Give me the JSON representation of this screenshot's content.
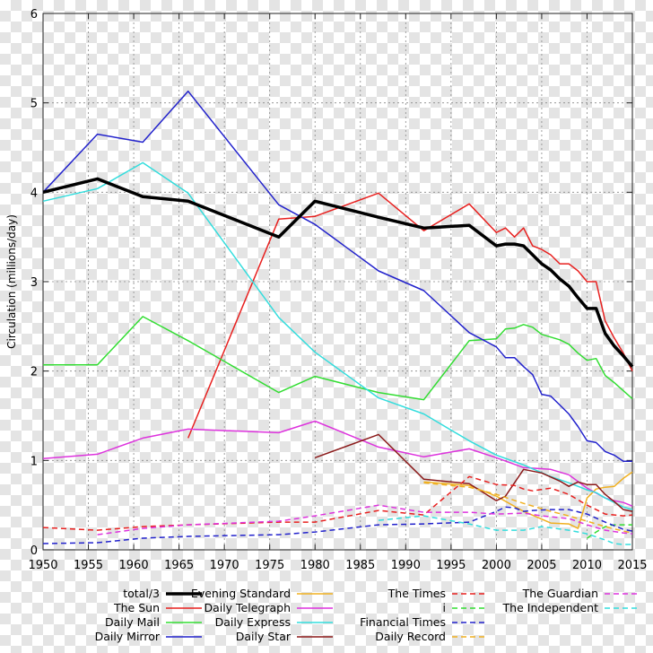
{
  "chart_data": {
    "type": "line",
    "title": "",
    "xlabel": "",
    "ylabel": "Circulation (millions/day)",
    "xlim": [
      1950,
      2015
    ],
    "ylim": [
      0,
      6
    ],
    "x_ticks": [
      "1950",
      "1955",
      "1960",
      "1965",
      "1970",
      "1975",
      "1980",
      "1985",
      "1990",
      "1995",
      "2000",
      "2005",
      "2010",
      "2015"
    ],
    "y_ticks": [
      "0",
      "1",
      "2",
      "3",
      "4",
      "5",
      "6"
    ],
    "grid": true,
    "legend_position": "bottom",
    "series": [
      {
        "name": "total/3",
        "color": "#000000",
        "dash": "solid",
        "width": 3.5,
        "x": [
          1950,
          1956,
          1961,
          1966,
          1976,
          1980,
          1987,
          1992,
          1997,
          2000,
          2001,
          2002,
          2003,
          2004,
          2005,
          2006,
          2007,
          2008,
          2009,
          2010,
          2011,
          2012,
          2013,
          2014,
          2015
        ],
        "y": [
          4.0,
          4.15,
          3.95,
          3.9,
          3.5,
          3.9,
          3.72,
          3.6,
          3.63,
          3.4,
          3.42,
          3.42,
          3.4,
          3.3,
          3.2,
          3.13,
          3.03,
          2.95,
          2.82,
          2.7,
          2.7,
          2.42,
          2.28,
          2.17,
          2.05
        ]
      },
      {
        "name": "The Sun",
        "color": "#e8201f",
        "dash": "solid",
        "width": 1.5,
        "x": [
          1966,
          1976,
          1980,
          1987,
          1992,
          1997,
          2000,
          2001,
          2002,
          2003,
          2004,
          2005,
          2006,
          2007,
          2008,
          2009,
          2010,
          2011,
          2012,
          2013,
          2014,
          2015
        ],
        "y": [
          1.25,
          3.7,
          3.73,
          3.99,
          3.57,
          3.87,
          3.55,
          3.6,
          3.5,
          3.6,
          3.4,
          3.36,
          3.3,
          3.2,
          3.2,
          3.12,
          3.0,
          3.0,
          2.56,
          2.37,
          2.2,
          2.0
        ]
      },
      {
        "name": "Daily Mail",
        "color": "#33dd33",
        "dash": "solid",
        "width": 1.5,
        "x": [
          1950,
          1956,
          1961,
          1966,
          1976,
          1980,
          1987,
          1992,
          1997,
          2000,
          2001,
          2002,
          2003,
          2004,
          2005,
          2006,
          2007,
          2008,
          2009,
          2010,
          2011,
          2012,
          2013,
          2014,
          2015
        ],
        "y": [
          2.07,
          2.07,
          2.61,
          2.34,
          1.76,
          1.94,
          1.76,
          1.68,
          2.34,
          2.36,
          2.47,
          2.48,
          2.52,
          2.49,
          2.41,
          2.38,
          2.35,
          2.3,
          2.2,
          2.12,
          2.14,
          1.95,
          1.87,
          1.78,
          1.69
        ]
      },
      {
        "name": "Daily Mirror",
        "color": "#2222cc",
        "dash": "solid",
        "width": 1.5,
        "x": [
          1950,
          1956,
          1961,
          1966,
          1976,
          1980,
          1987,
          1992,
          1997,
          2000,
          2001,
          2002,
          2003,
          2004,
          2005,
          2006,
          2007,
          2008,
          2009,
          2010,
          2011,
          2012,
          2013,
          2014,
          2015
        ],
        "y": [
          4.0,
          4.65,
          4.56,
          5.13,
          3.86,
          3.64,
          3.12,
          2.9,
          2.43,
          2.27,
          2.15,
          2.15,
          2.05,
          1.96,
          1.74,
          1.72,
          1.62,
          1.52,
          1.38,
          1.22,
          1.2,
          1.1,
          1.06,
          0.99,
          0.99
        ]
      },
      {
        "name": "Evening Standard",
        "color": "#f0b020",
        "dash": "solid",
        "width": 1.5,
        "x": [
          1992,
          1997,
          2000,
          2003,
          2006,
          2008,
          2009,
          2010,
          2011,
          2012,
          2013,
          2014,
          2015
        ],
        "y": [
          0.76,
          0.72,
          0.6,
          0.43,
          0.3,
          0.29,
          0.24,
          0.58,
          0.68,
          0.7,
          0.71,
          0.8,
          0.87
        ]
      },
      {
        "name": "Daily Telegraph",
        "color": "#dd33dd",
        "dash": "solid",
        "width": 1.5,
        "x": [
          1950,
          1956,
          1961,
          1966,
          1976,
          1980,
          1987,
          1992,
          1997,
          2000,
          2003,
          2006,
          2008,
          2010,
          2012,
          2013,
          2014,
          2015
        ],
        "y": [
          1.02,
          1.07,
          1.25,
          1.35,
          1.31,
          1.44,
          1.15,
          1.04,
          1.13,
          1.03,
          0.92,
          0.9,
          0.84,
          0.69,
          0.58,
          0.55,
          0.53,
          0.49
        ]
      },
      {
        "name": "Daily Express",
        "color": "#33dddd",
        "dash": "solid",
        "width": 1.5,
        "x": [
          1950,
          1956,
          1961,
          1966,
          1976,
          1980,
          1987,
          1992,
          1997,
          2000,
          2003,
          2006,
          2008,
          2009,
          2010,
          2011,
          2012,
          2013,
          2014,
          2015
        ],
        "y": [
          3.9,
          4.04,
          4.33,
          3.99,
          2.6,
          2.21,
          1.7,
          1.52,
          1.22,
          1.06,
          0.95,
          0.82,
          0.75,
          0.71,
          0.67,
          0.64,
          0.58,
          0.53,
          0.48,
          0.45
        ]
      },
      {
        "name": "Daily Star",
        "color": "#8b1a1a",
        "dash": "solid",
        "width": 1.5,
        "x": [
          1980,
          1987,
          1992,
          1997,
          2000,
          2001,
          2003,
          2005,
          2007,
          2008,
          2009,
          2010,
          2011,
          2012,
          2013,
          2014,
          2015
        ],
        "y": [
          1.03,
          1.29,
          0.79,
          0.74,
          0.55,
          0.6,
          0.9,
          0.86,
          0.77,
          0.71,
          0.76,
          0.73,
          0.73,
          0.62,
          0.54,
          0.45,
          0.43
        ]
      },
      {
        "name": "The Times",
        "color": "#e8201f",
        "dash": "dashed",
        "width": 1.5,
        "x": [
          1950,
          1956,
          1961,
          1966,
          1976,
          1980,
          1987,
          1992,
          1997,
          2000,
          2002,
          2003,
          2004,
          2006,
          2008,
          2010,
          2012,
          2014,
          2015
        ],
        "y": [
          0.25,
          0.22,
          0.26,
          0.28,
          0.31,
          0.31,
          0.44,
          0.39,
          0.82,
          0.73,
          0.72,
          0.68,
          0.66,
          0.69,
          0.62,
          0.5,
          0.4,
          0.38,
          0.39
        ]
      },
      {
        "name": "i",
        "color": "#33dd33",
        "dash": "dashed",
        "width": 1.5,
        "x": [
          2010,
          2011,
          2012,
          2013,
          2014,
          2015
        ],
        "y": [
          0.13,
          0.2,
          0.26,
          0.28,
          0.28,
          0.28
        ]
      },
      {
        "name": "Financial Times",
        "color": "#2222cc",
        "dash": "dashed",
        "width": 1.5,
        "x": [
          1950,
          1956,
          1961,
          1966,
          1976,
          1980,
          1987,
          1992,
          1997,
          2000,
          2001,
          2002,
          2003,
          2004,
          2006,
          2008,
          2010,
          2012,
          2014,
          2015
        ],
        "y": [
          0.07,
          0.08,
          0.13,
          0.15,
          0.17,
          0.2,
          0.28,
          0.29,
          0.31,
          0.43,
          0.48,
          0.47,
          0.43,
          0.44,
          0.45,
          0.45,
          0.4,
          0.31,
          0.23,
          0.21
        ]
      },
      {
        "name": "Daily Record",
        "color": "#f0b020",
        "dash": "dashed",
        "width": 1.5,
        "x": [
          1992,
          1997,
          2000,
          2003,
          2006,
          2008,
          2010,
          2012,
          2014,
          2015
        ],
        "y": [
          0.75,
          0.7,
          0.62,
          0.52,
          0.43,
          0.38,
          0.32,
          0.26,
          0.21,
          0.19
        ]
      },
      {
        "name": "The Guardian",
        "color": "#dd33dd",
        "dash": "dashed",
        "width": 1.5,
        "x": [
          1956,
          1961,
          1966,
          1976,
          1980,
          1987,
          1992,
          1997,
          2000,
          2003,
          2005,
          2008,
          2010,
          2012,
          2014,
          2015
        ],
        "y": [
          0.17,
          0.24,
          0.28,
          0.32,
          0.38,
          0.5,
          0.42,
          0.42,
          0.4,
          0.41,
          0.38,
          0.35,
          0.28,
          0.22,
          0.19,
          0.18
        ]
      },
      {
        "name": "The Independent",
        "color": "#33dddd",
        "dash": "dashed",
        "width": 1.5,
        "x": [
          1987,
          1992,
          1997,
          2000,
          2003,
          2005,
          2008,
          2010,
          2012,
          2013,
          2014,
          2015
        ],
        "y": [
          0.33,
          0.38,
          0.29,
          0.22,
          0.22,
          0.26,
          0.22,
          0.18,
          0.11,
          0.07,
          0.06,
          0.06
        ]
      }
    ]
  }
}
